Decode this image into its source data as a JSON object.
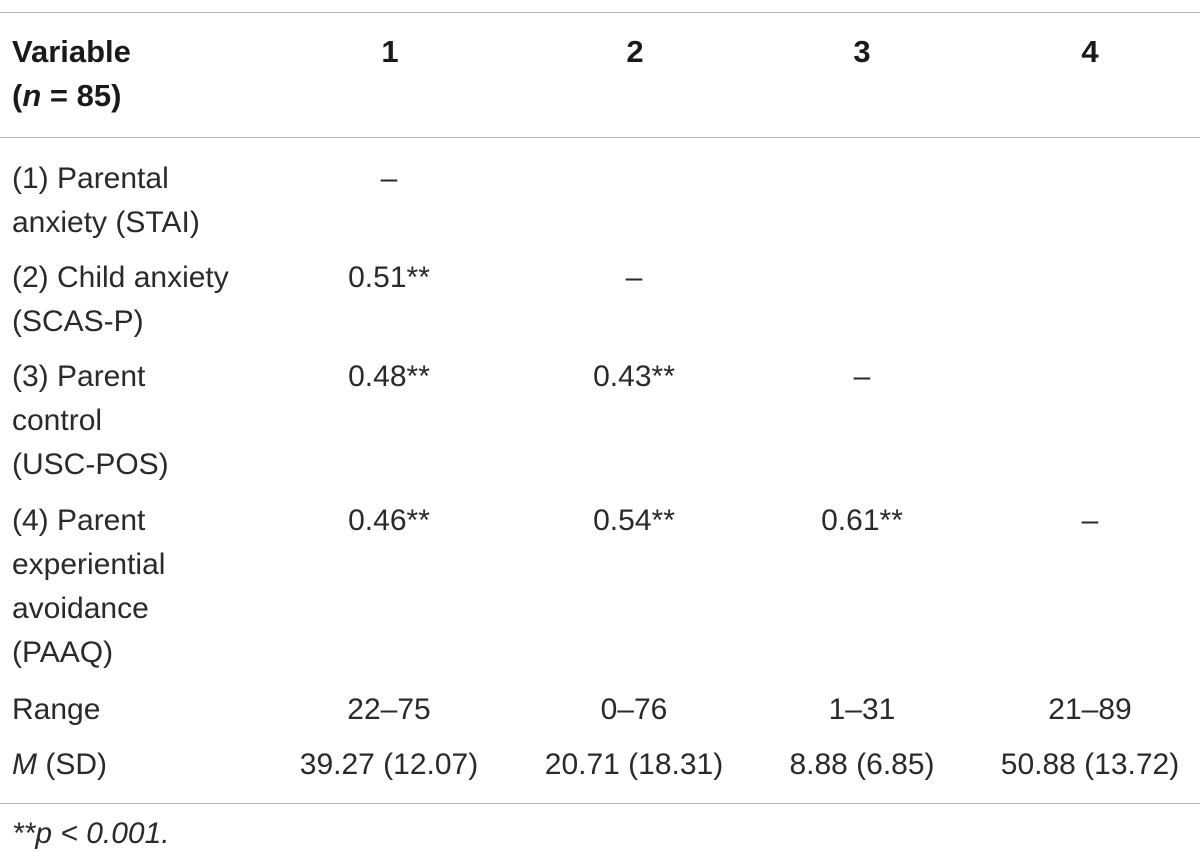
{
  "table": {
    "header": {
      "variable_line1": "Variable",
      "variable_line2_prefix": "(",
      "variable_line2_n": "n",
      "variable_line2_suffix": " = 85)",
      "columns": [
        "1",
        "2",
        "3",
        "4"
      ]
    },
    "rows": [
      {
        "label_lines": [
          "(1) Parental",
          "anxiety (STAI)"
        ],
        "cells": [
          "–",
          "",
          "",
          ""
        ]
      },
      {
        "label_lines": [
          "(2) Child anxiety",
          "(SCAS-P)"
        ],
        "cells": [
          "0.51**",
          "–",
          "",
          ""
        ]
      },
      {
        "label_lines": [
          "(3) Parent",
          "control",
          "(USC-POS)"
        ],
        "cells": [
          "0.48**",
          "0.43**",
          "–",
          ""
        ]
      },
      {
        "label_lines": [
          "(4) Parent",
          "experiential",
          "avoidance",
          "(PAAQ)"
        ],
        "cells": [
          "0.46**",
          "0.54**",
          "0.61**",
          "–"
        ]
      },
      {
        "label_lines": [
          "Range"
        ],
        "cells": [
          "22–75",
          "0–76",
          "1–31",
          "21–89"
        ]
      },
      {
        "label_prefix_italic": "M",
        "label_suffix": " (SD)",
        "cells": [
          "39.27 (12.07)",
          "20.71 (18.31)",
          "8.88 (6.85)",
          "50.88 (13.72)"
        ]
      }
    ],
    "footnote": "**p < 0.001."
  }
}
